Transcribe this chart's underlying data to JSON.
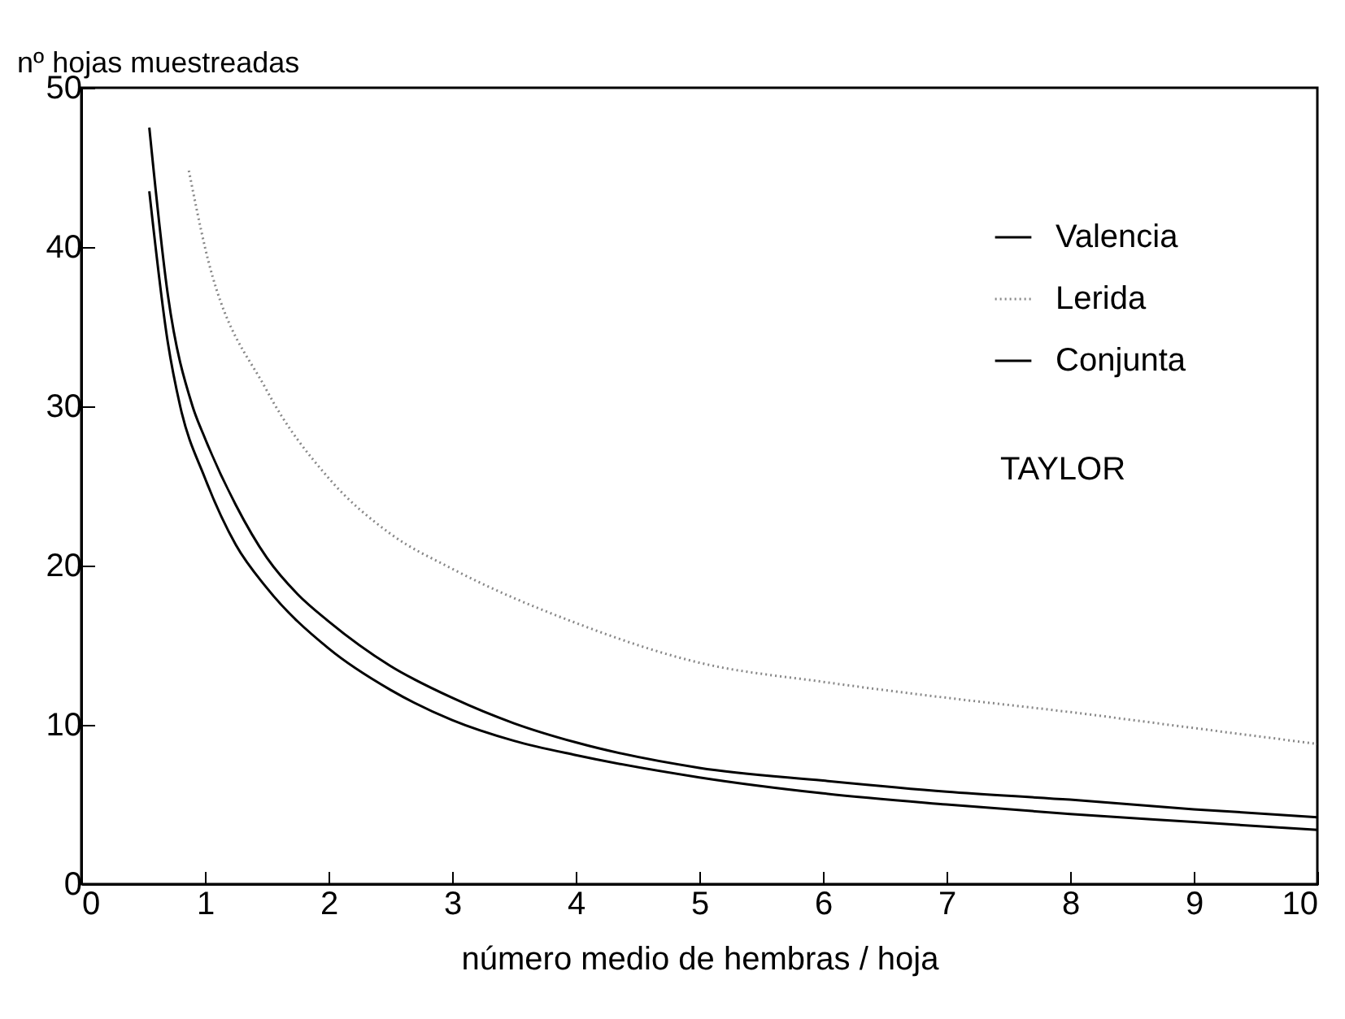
{
  "chart_data": {
    "type": "line",
    "xlabel": "número medio de hembras / hoja",
    "ylabel": "nº hojas muestreadas",
    "xlim": [
      0,
      10
    ],
    "xticks": [
      0,
      1,
      2,
      3,
      4,
      5,
      6,
      7,
      8,
      9,
      10
    ],
    "ylim": [
      0,
      50
    ],
    "yticks": [
      0,
      10,
      20,
      30,
      40,
      50
    ],
    "grid": false,
    "legend": "top right",
    "marker": "none",
    "annotations": [
      "TAYLOR"
    ],
    "series": [
      {
        "name": "Valencia",
        "color": "#000000",
        "line_style": "solid",
        "x": [
          0.55,
          0.7,
          0.8,
          1,
          1.25,
          1.5,
          2,
          2.5,
          3,
          3.5,
          4,
          5,
          6,
          7,
          8,
          9,
          10
        ],
        "values": [
          43.5,
          34,
          30,
          25.5,
          21.3,
          18.6,
          14.8,
          12.2,
          10.3,
          9,
          8.1,
          6.7,
          5.7,
          5,
          4.4,
          3.9,
          3.4
        ]
      },
      {
        "name": "Lerida",
        "color": "#888888",
        "line_style": "dotted",
        "x": [
          0.87,
          1,
          1.5,
          2,
          2.5,
          3,
          4,
          5,
          6,
          7,
          8,
          9,
          10
        ],
        "values": [
          44.8,
          40,
          31,
          25.5,
          22,
          19.8,
          16.4,
          13.9,
          12.7,
          11.7,
          10.8,
          9.8,
          8.8
        ]
      },
      {
        "name": "Conjunta",
        "color": "#000000",
        "line_style": "solid",
        "x": [
          0.55,
          0.7,
          0.9,
          1,
          1.25,
          1.5,
          1.75,
          2,
          2.5,
          3,
          3.5,
          4,
          5,
          6,
          7,
          8,
          9,
          10
        ],
        "values": [
          47.5,
          37,
          30,
          28,
          23.8,
          20.5,
          18.2,
          16.5,
          13.7,
          11.7,
          10.1,
          8.9,
          7.3,
          6.5,
          5.8,
          5.3,
          4.7,
          4.2
        ]
      }
    ]
  }
}
